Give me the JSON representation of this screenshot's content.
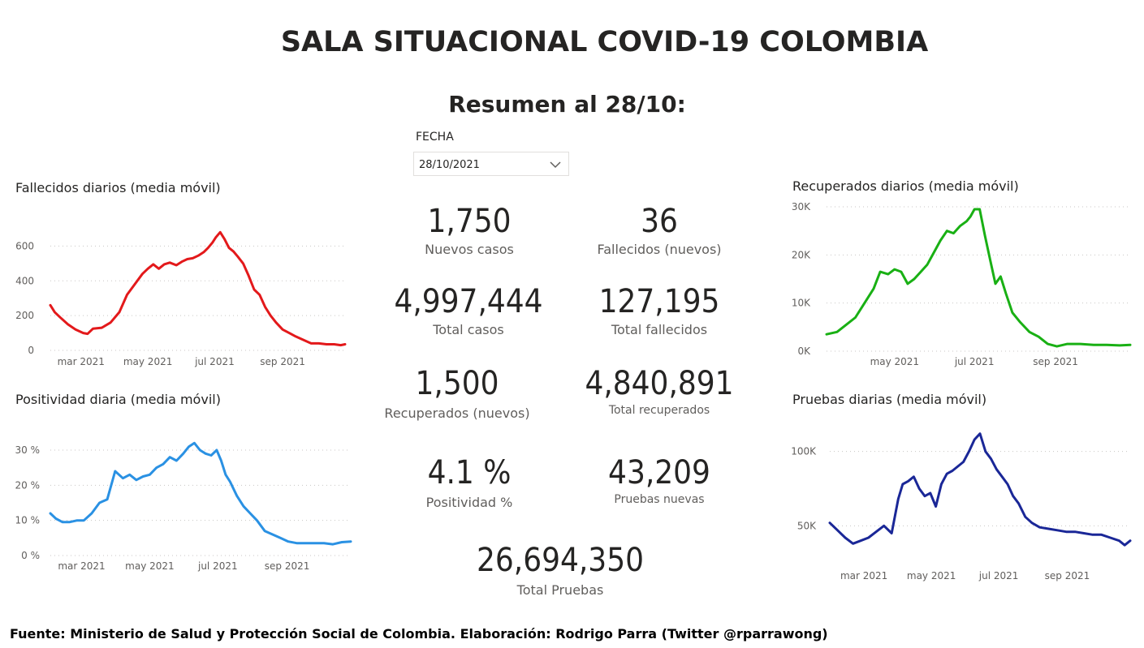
{
  "header": {
    "title": "SALA SITUACIONAL COVID-19 COLOMBIA",
    "subtitle": "Resumen al 28/10:"
  },
  "filter": {
    "label": "FECHA",
    "value": "28/10/2021",
    "icon": "chevron-down-icon"
  },
  "kpis": {
    "nuevos_casos": {
      "value": "1,750",
      "label": "Nuevos casos"
    },
    "fallecidos_nuevos": {
      "value": "36",
      "label": "Fallecidos (nuevos)"
    },
    "total_casos": {
      "value": "4,997,444",
      "label": "Total casos"
    },
    "total_fallecidos": {
      "value": "127,195",
      "label": "Total fallecidos"
    },
    "recuperados_nuevos": {
      "value": "1,500",
      "label": "Recuperados (nuevos)"
    },
    "total_recuperados": {
      "value": "4,840,891",
      "label": "Total recuperados"
    },
    "positividad": {
      "value": "4.1 %",
      "label": "Positividad %"
    },
    "pruebas_nuevas": {
      "value": "43,209",
      "label": "Pruebas nuevas"
    },
    "total_pruebas": {
      "value": "26,694,350",
      "label": "Total Pruebas"
    }
  },
  "footer": "Fuente: Ministerio de Salud y Protección Social de Colombia. Elaboración: Rodrigo Parra (Twitter @rparrawong)",
  "chart_data": [
    {
      "id": "fallecidos",
      "type": "line",
      "title": "Fallecidos diarios (media móvil)",
      "color": "#e3191b",
      "grid": true,
      "ylim": [
        0,
        700
      ],
      "yticks": [
        0,
        200,
        400,
        600
      ],
      "ytick_labels": [
        "0",
        "200",
        "400",
        "600"
      ],
      "xlim": [
        "2021-02-01",
        "2021-10-28"
      ],
      "xticks": [
        "2021-03-01",
        "2021-05-01",
        "2021-07-01",
        "2021-09-01"
      ],
      "xtick_labels": [
        "mar 2021",
        "may 2021",
        "jul 2021",
        "sep 2021"
      ],
      "series": [
        {
          "x": [
            "2021-02-01",
            "2021-02-05",
            "2021-02-10",
            "2021-02-17",
            "2021-02-24",
            "2021-03-03",
            "2021-03-07",
            "2021-03-12",
            "2021-03-20",
            "2021-03-28",
            "2021-04-05",
            "2021-04-12",
            "2021-04-19",
            "2021-04-26",
            "2021-05-01",
            "2021-05-06",
            "2021-05-11",
            "2021-05-16",
            "2021-05-21",
            "2021-05-27",
            "2021-06-01",
            "2021-06-06",
            "2021-06-11",
            "2021-06-16",
            "2021-06-21",
            "2021-06-25",
            "2021-06-29",
            "2021-07-02",
            "2021-07-06",
            "2021-07-10",
            "2021-07-14",
            "2021-07-18",
            "2021-07-22",
            "2021-07-27",
            "2021-08-01",
            "2021-08-06",
            "2021-08-11",
            "2021-08-16",
            "2021-08-21",
            "2021-08-26",
            "2021-09-01",
            "2021-09-07",
            "2021-09-13",
            "2021-09-20",
            "2021-09-27",
            "2021-10-04",
            "2021-10-11",
            "2021-10-18",
            "2021-10-24",
            "2021-10-28"
          ],
          "y": [
            260,
            220,
            190,
            150,
            120,
            100,
            95,
            125,
            130,
            160,
            220,
            320,
            380,
            440,
            470,
            495,
            470,
            495,
            505,
            490,
            510,
            525,
            530,
            545,
            565,
            590,
            620,
            650,
            680,
            640,
            590,
            570,
            540,
            500,
            430,
            350,
            320,
            250,
            200,
            160,
            120,
            100,
            80,
            60,
            40,
            40,
            35,
            35,
            30,
            35
          ]
        }
      ]
    },
    {
      "id": "positividad",
      "type": "line",
      "title": "Positividad diaria (media móvil)",
      "color": "#2a91e3",
      "grid": true,
      "ylim": [
        0,
        33
      ],
      "yticks": [
        0,
        10,
        20,
        30
      ],
      "ytick_labels": [
        "0 %",
        "10 %",
        "20 %",
        "30 %"
      ],
      "xlim": [
        "2021-02-01",
        "2021-10-28"
      ],
      "xticks": [
        "2021-03-01",
        "2021-05-01",
        "2021-07-01",
        "2021-09-01"
      ],
      "xtick_labels": [
        "mar 2021",
        "may 2021",
        "jul 2021",
        "sep 2021"
      ],
      "series": [
        {
          "x": [
            "2021-02-01",
            "2021-02-06",
            "2021-02-12",
            "2021-02-18",
            "2021-02-25",
            "2021-03-03",
            "2021-03-10",
            "2021-03-17",
            "2021-03-24",
            "2021-03-31",
            "2021-04-07",
            "2021-04-13",
            "2021-04-19",
            "2021-04-25",
            "2021-05-01",
            "2021-05-07",
            "2021-05-13",
            "2021-05-19",
            "2021-05-25",
            "2021-05-31",
            "2021-06-05",
            "2021-06-10",
            "2021-06-15",
            "2021-06-20",
            "2021-06-25",
            "2021-06-30",
            "2021-07-04",
            "2021-07-08",
            "2021-07-12",
            "2021-07-18",
            "2021-07-24",
            "2021-07-30",
            "2021-08-05",
            "2021-08-12",
            "2021-08-19",
            "2021-08-26",
            "2021-09-02",
            "2021-09-10",
            "2021-09-18",
            "2021-09-26",
            "2021-10-04",
            "2021-10-12",
            "2021-10-20",
            "2021-10-28"
          ],
          "y": [
            12,
            10.5,
            9.5,
            9.5,
            10,
            10,
            12,
            15,
            16,
            24,
            22,
            23,
            21.5,
            22.5,
            23,
            25,
            26,
            28,
            27,
            29,
            31,
            32,
            30,
            29,
            28.5,
            30,
            27,
            23,
            21,
            17,
            14,
            12,
            10,
            7,
            6,
            5,
            4,
            3.5,
            3.5,
            3.5,
            3.5,
            3.2,
            3.8,
            4
          ]
        }
      ]
    },
    {
      "id": "recuperados",
      "type": "line",
      "title": "Recuperados diarios (media móvil)",
      "color": "#19b014",
      "grid": true,
      "ylim": [
        0,
        30000
      ],
      "yticks": [
        0,
        10000,
        20000,
        30000
      ],
      "ytick_labels": [
        "0K",
        "10K",
        "20K",
        "30K"
      ],
      "xlim": [
        "2021-03-10",
        "2021-10-28"
      ],
      "xticks": [
        "2021-05-01",
        "2021-07-01",
        "2021-09-01"
      ],
      "xtick_labels": [
        "may 2021",
        "jul 2021",
        "sep 2021"
      ],
      "series": [
        {
          "x": [
            "2021-03-10",
            "2021-03-18",
            "2021-03-25",
            "2021-04-01",
            "2021-04-08",
            "2021-04-15",
            "2021-04-20",
            "2021-04-26",
            "2021-05-01",
            "2021-05-06",
            "2021-05-11",
            "2021-05-16",
            "2021-05-21",
            "2021-05-26",
            "2021-05-31",
            "2021-06-05",
            "2021-06-10",
            "2021-06-15",
            "2021-06-20",
            "2021-06-25",
            "2021-06-28",
            "2021-07-01",
            "2021-07-05",
            "2021-07-09",
            "2021-07-13",
            "2021-07-17",
            "2021-07-21",
            "2021-07-25",
            "2021-07-30",
            "2021-08-05",
            "2021-08-12",
            "2021-08-19",
            "2021-08-26",
            "2021-09-02",
            "2021-09-10",
            "2021-09-20",
            "2021-09-30",
            "2021-10-10",
            "2021-10-20",
            "2021-10-28"
          ],
          "y": [
            3500,
            4000,
            5500,
            7000,
            10000,
            13000,
            16500,
            16000,
            17000,
            16500,
            14000,
            15000,
            16500,
            18000,
            20500,
            23000,
            25000,
            24500,
            26000,
            27000,
            28000,
            29500,
            29500,
            24000,
            19000,
            14000,
            15500,
            12000,
            8000,
            6000,
            4000,
            3000,
            1500,
            1000,
            1500,
            1500,
            1300,
            1300,
            1200,
            1300
          ]
        }
      ]
    },
    {
      "id": "pruebas",
      "type": "line",
      "title": "Pruebas diarias (media móvil)",
      "color": "#1a2797",
      "grid": true,
      "ylim": [
        30000,
        120000
      ],
      "yticks": [
        50000,
        100000
      ],
      "ytick_labels": [
        "50K",
        "100K"
      ],
      "xlim": [
        "2021-01-29",
        "2021-10-28"
      ],
      "xticks": [
        "2021-03-01",
        "2021-05-01",
        "2021-07-01",
        "2021-09-01"
      ],
      "xtick_labels": [
        "mar 2021",
        "may 2021",
        "jul 2021",
        "sep 2021"
      ],
      "series": [
        {
          "x": [
            "2021-01-29",
            "2021-02-05",
            "2021-02-12",
            "2021-02-19",
            "2021-02-26",
            "2021-03-05",
            "2021-03-12",
            "2021-03-19",
            "2021-03-26",
            "2021-04-01",
            "2021-04-05",
            "2021-04-10",
            "2021-04-15",
            "2021-04-20",
            "2021-04-25",
            "2021-04-30",
            "2021-05-05",
            "2021-05-10",
            "2021-05-15",
            "2021-05-20",
            "2021-05-25",
            "2021-05-30",
            "2021-06-04",
            "2021-06-09",
            "2021-06-14",
            "2021-06-19",
            "2021-06-24",
            "2021-06-29",
            "2021-07-04",
            "2021-07-09",
            "2021-07-14",
            "2021-07-19",
            "2021-07-25",
            "2021-07-31",
            "2021-08-07",
            "2021-08-15",
            "2021-08-23",
            "2021-08-31",
            "2021-09-08",
            "2021-09-16",
            "2021-09-24",
            "2021-10-02",
            "2021-10-10",
            "2021-10-18",
            "2021-10-23",
            "2021-10-28"
          ],
          "y": [
            52000,
            47000,
            42000,
            38000,
            40000,
            42000,
            46000,
            50000,
            45000,
            68000,
            78000,
            80000,
            83000,
            75000,
            70000,
            72000,
            63000,
            78000,
            85000,
            87000,
            90000,
            93000,
            100000,
            108000,
            112000,
            100000,
            95000,
            88000,
            83000,
            78000,
            70000,
            65000,
            56000,
            52000,
            49000,
            48000,
            47000,
            46000,
            46000,
            45000,
            44000,
            44000,
            42000,
            40000,
            37000,
            40000
          ]
        }
      ]
    }
  ]
}
